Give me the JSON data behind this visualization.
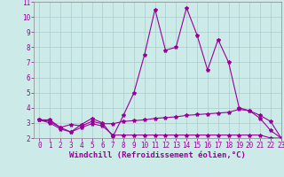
{
  "line1_x": [
    0,
    1,
    2,
    3,
    4,
    5,
    6,
    7,
    8,
    9,
    10,
    11,
    12,
    13,
    14,
    15,
    16,
    17,
    18,
    19,
    20,
    21,
    22,
    23
  ],
  "line1_y": [
    3.2,
    3.2,
    2.7,
    2.4,
    2.9,
    3.3,
    3.0,
    2.1,
    3.5,
    5.0,
    7.5,
    10.5,
    7.8,
    8.0,
    10.6,
    8.8,
    6.5,
    8.5,
    7.0,
    4.0,
    3.8,
    3.3,
    2.5,
    2.0
  ],
  "line2_x": [
    0,
    1,
    2,
    3,
    4,
    5,
    6,
    7,
    8,
    9,
    10,
    11,
    12,
    13,
    14,
    15,
    16,
    17,
    18,
    19,
    20,
    21,
    22,
    23
  ],
  "line2_y": [
    3.2,
    3.1,
    2.7,
    2.9,
    2.8,
    3.1,
    2.95,
    2.95,
    3.1,
    3.15,
    3.2,
    3.3,
    3.35,
    3.4,
    3.5,
    3.55,
    3.6,
    3.65,
    3.7,
    3.9,
    3.8,
    3.5,
    3.1,
    2.0
  ],
  "line3_x": [
    0,
    1,
    2,
    3,
    4,
    5,
    6,
    7,
    8,
    9,
    10,
    11,
    12,
    13,
    14,
    15,
    16,
    17,
    18,
    19,
    20,
    21,
    22,
    23
  ],
  "line3_y": [
    3.2,
    3.0,
    2.6,
    2.4,
    2.7,
    2.95,
    2.8,
    2.2,
    2.2,
    2.2,
    2.2,
    2.2,
    2.2,
    2.2,
    2.2,
    2.2,
    2.2,
    2.2,
    2.2,
    2.2,
    2.2,
    2.2,
    2.0,
    2.0
  ],
  "line_color": "#990099",
  "bg_color": "#cceae8",
  "grid_color": "#aacccc",
  "xlabel": "Windchill (Refroidissement éolien,°C)",
  "xlim": [
    -0.5,
    23
  ],
  "ylim": [
    2,
    11
  ],
  "yticks": [
    2,
    3,
    4,
    5,
    6,
    7,
    8,
    9,
    10,
    11
  ],
  "xticks": [
    0,
    1,
    2,
    3,
    4,
    5,
    6,
    7,
    8,
    9,
    10,
    11,
    12,
    13,
    14,
    15,
    16,
    17,
    18,
    19,
    20,
    21,
    22,
    23
  ],
  "marker": "*",
  "marker_size": 3,
  "line_width": 0.8,
  "xlabel_fontsize": 6.5,
  "tick_fontsize": 5.5,
  "label_color": "#990099"
}
